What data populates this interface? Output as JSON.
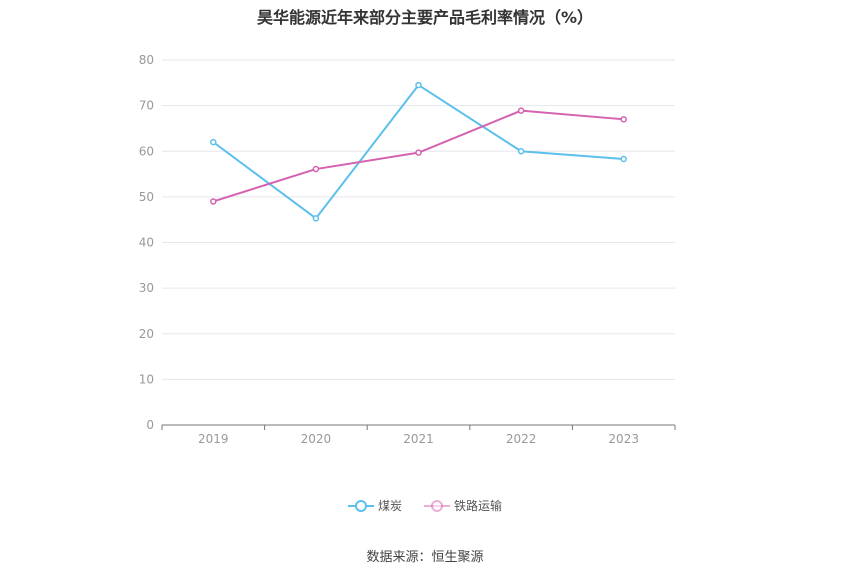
{
  "chart_data": {
    "type": "line",
    "title": "昊华能源近年来部分主要产品毛利率情况（%）",
    "categories": [
      "2019",
      "2020",
      "2021",
      "2022",
      "2023"
    ],
    "series": [
      {
        "name": "煤炭",
        "color": "#5bc0eb",
        "values": [
          62.0,
          45.3,
          74.5,
          60.0,
          58.3
        ]
      },
      {
        "name": "铁路运输",
        "color": "#d462b0",
        "values": [
          49.0,
          56.1,
          59.7,
          68.9,
          67.0
        ]
      }
    ],
    "ylim": [
      0,
      80
    ],
    "yticks": [
      0,
      10,
      20,
      30,
      40,
      50,
      60,
      70,
      80
    ],
    "grid": true,
    "legend": "bottom-center",
    "xlabel": "",
    "ylabel": ""
  },
  "source": "数据来源：恒生聚源"
}
